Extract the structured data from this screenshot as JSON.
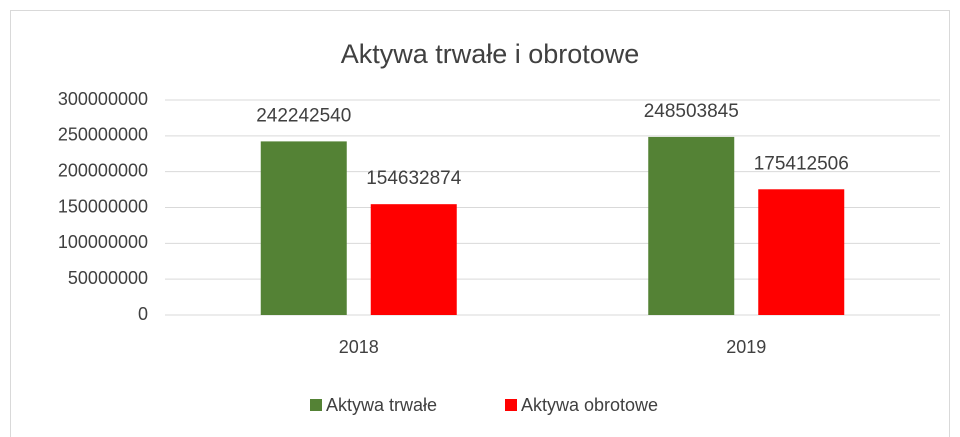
{
  "chart_data": {
    "type": "bar",
    "title": "Aktywa trwałe i obrotowe",
    "categories": [
      "2018",
      "2019"
    ],
    "series": [
      {
        "name": "Aktywa trwałe",
        "color": "#548235",
        "values": [
          242242540,
          248503845
        ]
      },
      {
        "name": "Aktywa obrotowe",
        "color": "#ff0000",
        "values": [
          154632874,
          175412506
        ]
      }
    ],
    "ylim": [
      0,
      300000000
    ],
    "yticks": [
      0,
      50000000,
      100000000,
      150000000,
      200000000,
      250000000,
      300000000
    ],
    "grid": true,
    "legend": "bottom"
  }
}
